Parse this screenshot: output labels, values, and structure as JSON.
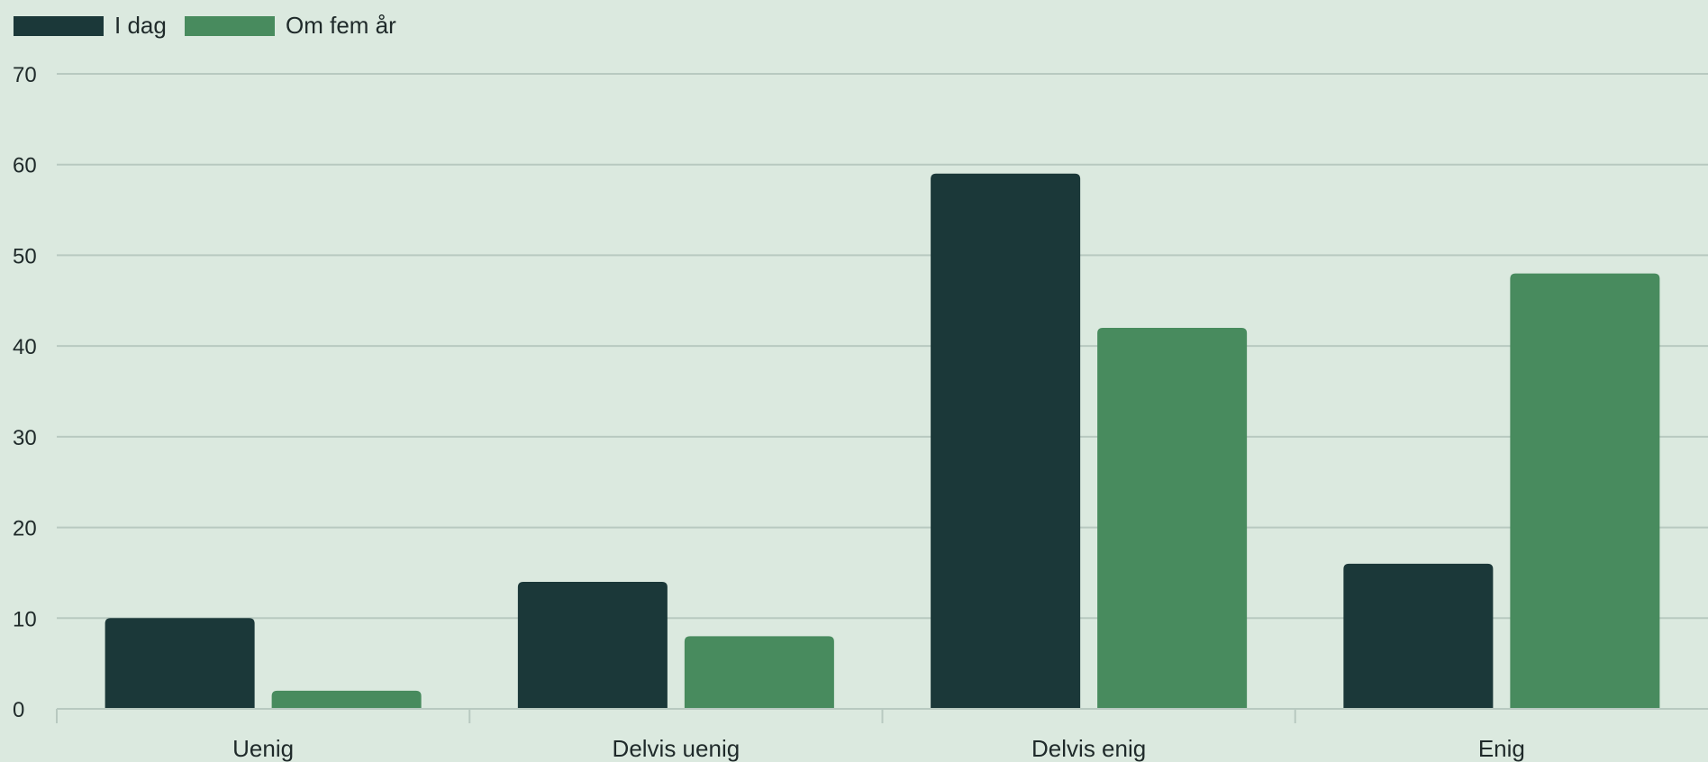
{
  "chart_data": {
    "type": "bar",
    "categories": [
      "Uenig",
      "Delvis uenig",
      "Delvis enig",
      "Enig"
    ],
    "series": [
      {
        "name": "I dag",
        "values": [
          10,
          14,
          59,
          16
        ],
        "color": "#1b3839"
      },
      {
        "name": "Om fem år",
        "values": [
          2,
          8,
          42,
          48
        ],
        "color": "#488b5e"
      }
    ],
    "yticks": [
      0,
      10,
      20,
      30,
      40,
      50,
      60,
      70
    ],
    "ylim": [
      0,
      70
    ],
    "grid": true,
    "legend_position": "top-left",
    "title": "",
    "xlabel": "",
    "ylabel": ""
  }
}
